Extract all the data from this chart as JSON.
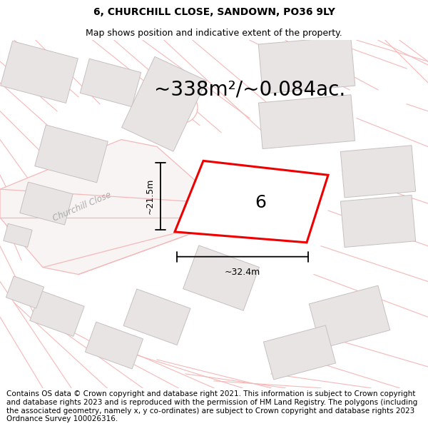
{
  "title": "6, CHURCHILL CLOSE, SANDOWN, PO36 9LY",
  "subtitle": "Map shows position and indicative extent of the property.",
  "area_text": "~338m²/~0.084ac.",
  "width_label": "~32.4m",
  "height_label": "~21.5m",
  "number_label": "6",
  "street_label": "Churchill Close",
  "footer_text": "Contains OS data © Crown copyright and database right 2021. This information is subject to Crown copyright and database rights 2023 and is reproduced with the permission of HM Land Registry. The polygons (including the associated geometry, namely x, y co-ordinates) are subject to Crown copyright and database rights 2023 Ordnance Survey 100026316.",
  "bg_color": "#ffffff",
  "map_bg": "#ffffff",
  "road_color": "#f5b8b8",
  "building_fill": "#e8e4e4",
  "building_edge": "#c8c0c0",
  "highlight_color": "#ee0000",
  "title_fontsize": 10,
  "subtitle_fontsize": 9,
  "area_fontsize": 20,
  "footer_fontsize": 7.5,
  "title_color": "#000000",
  "footer_bg": "#ffffff"
}
